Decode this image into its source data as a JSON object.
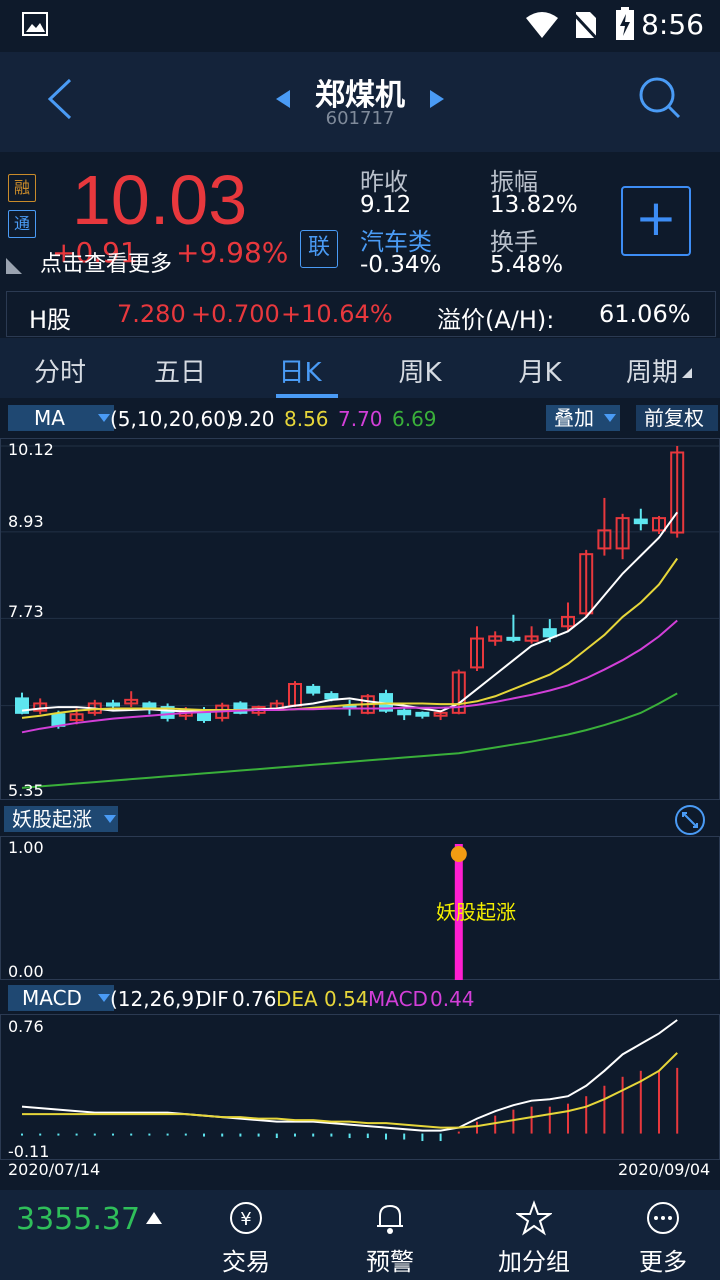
{
  "status": {
    "time": "8:56"
  },
  "header": {
    "title": "郑煤机",
    "code": "601717"
  },
  "quote": {
    "price": "10.03",
    "change": "+0.91",
    "change_pct": "+9.98%",
    "more": "点击查看更多",
    "prev_close_label": "昨收",
    "prev_close": "9.12",
    "sector_label": "汽车类",
    "sector_change": "-0.34%",
    "amplitude_label": "振幅",
    "amplitude": "13.82%",
    "turnover_label": "换手",
    "turnover": "5.48%",
    "tag_margin": "融",
    "tag_connect": "通",
    "tag_link": "联"
  },
  "hshare": {
    "label": "H股",
    "price": "7.280",
    "change": "+0.700",
    "change_pct": "+10.64%",
    "premium_label": "溢价(A/H):",
    "premium": "61.06%"
  },
  "tabs": [
    "分时",
    "五日",
    "日K",
    "周K",
    "月K",
    "周期"
  ],
  "ma_bar": {
    "select": "MA",
    "params": "(5,10,20,60)",
    "ma5": "9.20",
    "ma10": "8.56",
    "ma20": "7.70",
    "ma60": "6.69",
    "overlay": "叠加",
    "adjust": "前复权"
  },
  "yao": {
    "select": "妖股起涨",
    "ymax": "1.00",
    "ymin": "0.00",
    "signal_label": "妖股起涨"
  },
  "macd_bar": {
    "select": "MACD",
    "params": "(12,26,9)",
    "dif_label": "DIF",
    "dif": "0.76",
    "dea_label": "DEA",
    "dea": "0.54",
    "macd_label": "MACD",
    "macd": "0.44"
  },
  "macd_axis": {
    "ymax": "0.76",
    "ymin": "-0.11",
    "date_start": "2020/07/14",
    "date_end": "2020/09/04"
  },
  "bottom": {
    "index_value": "3355.37",
    "items": [
      "交易",
      "预警",
      "加分组",
      "更多"
    ]
  },
  "colors": {
    "up": "#e8383d",
    "down": "#5ee6f0",
    "ma5": "#ffffff",
    "ma10": "#e6d63a",
    "ma20": "#d23fd8",
    "ma60": "#3ab03a",
    "accent": "#4a9bf5"
  },
  "chart_data": [
    {
      "type": "candlestick",
      "ylim": [
        5.35,
        10.12
      ],
      "yticks": [
        "10.12",
        "8.93",
        "7.73",
        "5.35"
      ],
      "candles": [
        {
          "o": 6.62,
          "c": 6.42,
          "h": 6.7,
          "l": 6.4
        },
        {
          "o": 6.45,
          "c": 6.55,
          "h": 6.62,
          "l": 6.4
        },
        {
          "o": 6.4,
          "c": 6.24,
          "h": 6.45,
          "l": 6.2
        },
        {
          "o": 6.32,
          "c": 6.4,
          "h": 6.48,
          "l": 6.26
        },
        {
          "o": 6.42,
          "c": 6.55,
          "h": 6.6,
          "l": 6.38
        },
        {
          "o": 6.55,
          "c": 6.52,
          "h": 6.6,
          "l": 6.45
        },
        {
          "o": 6.55,
          "c": 6.6,
          "h": 6.72,
          "l": 6.5
        },
        {
          "o": 6.55,
          "c": 6.48,
          "h": 6.58,
          "l": 6.4
        },
        {
          "o": 6.5,
          "c": 6.35,
          "h": 6.55,
          "l": 6.3
        },
        {
          "o": 6.38,
          "c": 6.45,
          "h": 6.5,
          "l": 6.32
        },
        {
          "o": 6.45,
          "c": 6.32,
          "h": 6.5,
          "l": 6.28
        },
        {
          "o": 6.35,
          "c": 6.52,
          "h": 6.56,
          "l": 6.3
        },
        {
          "o": 6.55,
          "c": 6.42,
          "h": 6.58,
          "l": 6.4
        },
        {
          "o": 6.42,
          "c": 6.5,
          "h": 6.52,
          "l": 6.38
        },
        {
          "o": 6.48,
          "c": 6.55,
          "h": 6.6,
          "l": 6.45
        },
        {
          "o": 6.52,
          "c": 6.82,
          "h": 6.86,
          "l": 6.5
        },
        {
          "o": 6.78,
          "c": 6.7,
          "h": 6.82,
          "l": 6.66
        },
        {
          "o": 6.68,
          "c": 6.62,
          "h": 6.72,
          "l": 6.58
        },
        {
          "o": 6.52,
          "c": 6.48,
          "h": 6.6,
          "l": 6.38
        },
        {
          "o": 6.42,
          "c": 6.65,
          "h": 6.68,
          "l": 6.4
        },
        {
          "o": 6.68,
          "c": 6.45,
          "h": 6.74,
          "l": 6.42
        },
        {
          "o": 6.45,
          "c": 6.4,
          "h": 6.48,
          "l": 6.32
        },
        {
          "o": 6.42,
          "c": 6.38,
          "h": 6.44,
          "l": 6.34
        },
        {
          "o": 6.38,
          "c": 6.42,
          "h": 6.46,
          "l": 6.32
        },
        {
          "o": 6.42,
          "c": 6.98,
          "h": 7.02,
          "l": 6.4
        },
        {
          "o": 7.05,
          "c": 7.45,
          "h": 7.62,
          "l": 7.0
        },
        {
          "o": 7.42,
          "c": 7.48,
          "h": 7.55,
          "l": 7.35
        },
        {
          "o": 7.46,
          "c": 7.45,
          "h": 7.78,
          "l": 7.4
        },
        {
          "o": 7.42,
          "c": 7.48,
          "h": 7.62,
          "l": 7.38
        },
        {
          "o": 7.58,
          "c": 7.48,
          "h": 7.72,
          "l": 7.4
        },
        {
          "o": 7.62,
          "c": 7.75,
          "h": 7.95,
          "l": 7.55
        },
        {
          "o": 7.8,
          "c": 8.62,
          "h": 8.68,
          "l": 7.75
        },
        {
          "o": 8.7,
          "c": 8.95,
          "h": 9.4,
          "l": 8.6
        },
        {
          "o": 8.7,
          "c": 9.12,
          "h": 9.18,
          "l": 8.55
        },
        {
          "o": 9.1,
          "c": 9.05,
          "h": 9.25,
          "l": 8.95
        },
        {
          "o": 8.95,
          "c": 9.12,
          "h": 9.15,
          "l": 8.9
        },
        {
          "o": 8.92,
          "c": 10.03,
          "h": 10.12,
          "l": 8.85
        }
      ],
      "ma5": [
        6.45,
        6.48,
        6.5,
        6.5,
        6.48,
        6.45,
        6.46,
        6.47,
        6.45,
        6.44,
        6.44,
        6.45,
        6.46,
        6.47,
        6.48,
        6.52,
        6.55,
        6.6,
        6.62,
        6.58,
        6.55,
        6.52,
        6.48,
        6.44,
        6.55,
        6.75,
        6.95,
        7.15,
        7.35,
        7.45,
        7.55,
        7.75,
        8.05,
        8.35,
        8.6,
        8.85,
        9.2
      ],
      "ma10": [
        6.35,
        6.38,
        6.42,
        6.45,
        6.47,
        6.48,
        6.48,
        6.48,
        6.48,
        6.47,
        6.46,
        6.46,
        6.46,
        6.46,
        6.46,
        6.47,
        6.49,
        6.51,
        6.53,
        6.54,
        6.55,
        6.55,
        6.55,
        6.54,
        6.54,
        6.58,
        6.65,
        6.75,
        6.85,
        6.95,
        7.1,
        7.3,
        7.5,
        7.75,
        7.95,
        8.2,
        8.56
      ],
      "ma20": [
        6.15,
        6.2,
        6.24,
        6.28,
        6.31,
        6.34,
        6.36,
        6.38,
        6.4,
        6.42,
        6.43,
        6.44,
        6.45,
        6.46,
        6.46,
        6.47,
        6.47,
        6.48,
        6.48,
        6.48,
        6.48,
        6.49,
        6.49,
        6.49,
        6.5,
        6.53,
        6.57,
        6.62,
        6.67,
        6.73,
        6.8,
        6.9,
        7.02,
        7.15,
        7.3,
        7.48,
        7.7
      ],
      "ma60": [
        5.38,
        5.4,
        5.42,
        5.44,
        5.46,
        5.48,
        5.5,
        5.52,
        5.54,
        5.56,
        5.58,
        5.6,
        5.62,
        5.64,
        5.66,
        5.68,
        5.7,
        5.72,
        5.74,
        5.76,
        5.78,
        5.8,
        5.82,
        5.84,
        5.86,
        5.9,
        5.94,
        5.98,
        6.02,
        6.07,
        6.12,
        6.18,
        6.25,
        6.33,
        6.42,
        6.55,
        6.69
      ]
    },
    {
      "type": "bar",
      "title": "妖股起涨",
      "ylim": [
        0,
        1
      ],
      "signal_index": 24,
      "signal_value": 1
    },
    {
      "type": "line",
      "title": "MACD",
      "ylim": [
        -0.11,
        0.76
      ],
      "dif": [
        0.18,
        0.17,
        0.16,
        0.15,
        0.14,
        0.14,
        0.14,
        0.14,
        0.14,
        0.13,
        0.12,
        0.11,
        0.1,
        0.09,
        0.08,
        0.08,
        0.08,
        0.07,
        0.06,
        0.05,
        0.04,
        0.03,
        0.02,
        0.02,
        0.04,
        0.1,
        0.15,
        0.19,
        0.22,
        0.23,
        0.25,
        0.32,
        0.42,
        0.53,
        0.6,
        0.67,
        0.76
      ],
      "dea": [
        0.13,
        0.13,
        0.13,
        0.13,
        0.13,
        0.13,
        0.13,
        0.13,
        0.13,
        0.13,
        0.12,
        0.11,
        0.11,
        0.1,
        0.1,
        0.09,
        0.09,
        0.08,
        0.08,
        0.07,
        0.07,
        0.06,
        0.05,
        0.04,
        0.04,
        0.05,
        0.07,
        0.09,
        0.11,
        0.13,
        0.15,
        0.18,
        0.23,
        0.29,
        0.35,
        0.42,
        0.54
      ],
      "macd": [
        -0.01,
        -0.01,
        -0.01,
        -0.01,
        -0.01,
        -0.01,
        -0.01,
        -0.01,
        -0.01,
        -0.01,
        -0.02,
        -0.02,
        -0.02,
        -0.02,
        -0.03,
        -0.02,
        -0.02,
        -0.02,
        -0.03,
        -0.03,
        -0.04,
        -0.04,
        -0.05,
        -0.05,
        0.0,
        0.08,
        0.12,
        0.16,
        0.18,
        0.18,
        0.2,
        0.25,
        0.32,
        0.38,
        0.42,
        0.42,
        0.44
      ]
    }
  ]
}
